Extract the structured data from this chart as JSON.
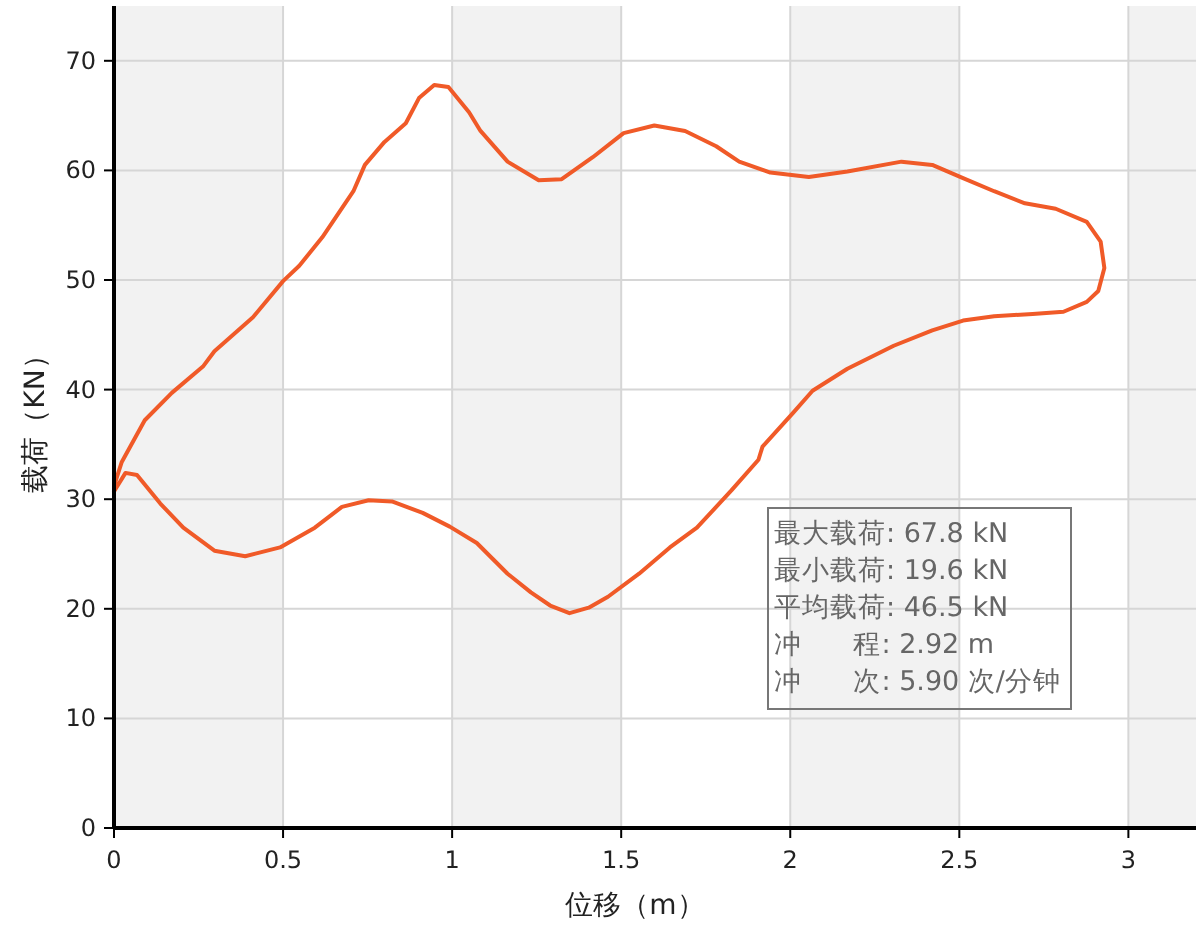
{
  "chart_data": {
    "type": "line",
    "xlabel": "位移（m）",
    "ylabel": "载荷（KN）",
    "xlim": [
      0,
      3.2
    ],
    "ylim": [
      0,
      75
    ],
    "xticks": [
      0,
      0.5,
      1,
      1.5,
      2,
      2.5,
      3
    ],
    "yticks": [
      0,
      10,
      20,
      30,
      40,
      50,
      60,
      70
    ],
    "grid": true,
    "series": [
      {
        "color": "#f05a28",
        "x": [
          0,
          0.023,
          0.091,
          0.171,
          0.263,
          0.297,
          0.411,
          0.5,
          0.548,
          0.616,
          0.708,
          0.742,
          0.8,
          0.863,
          0.902,
          0.947,
          0.989,
          1.05,
          1.084,
          1.164,
          1.256,
          1.324,
          1.416,
          1.507,
          1.598,
          1.689,
          1.781,
          1.849,
          1.941,
          2.055,
          2.169,
          2.329,
          2.42,
          2.511,
          2.603,
          2.694,
          2.785,
          2.877,
          2.918,
          2.929,
          2.911,
          2.877,
          2.808,
          2.717,
          2.603,
          2.511,
          2.42,
          2.306,
          2.169,
          2.066,
          2.009,
          1.918,
          1.906,
          1.826,
          1.724,
          1.644,
          1.553,
          1.461,
          1.404,
          1.347,
          1.29,
          1.233,
          1.164,
          1.073,
          0.993,
          0.913,
          0.822,
          0.753,
          0.674,
          0.594,
          0.491,
          0.388,
          0.297,
          0.205,
          0.137,
          0.068,
          0.034,
          0
        ],
        "values": [
          31.2,
          33.4,
          37.2,
          39.7,
          42.1,
          43.5,
          46.6,
          49.9,
          51.3,
          53.9,
          58.1,
          60.5,
          62.6,
          64.3,
          66.6,
          67.8,
          67.6,
          65.3,
          63.6,
          60.8,
          59.1,
          59.2,
          61.2,
          63.4,
          64.1,
          63.6,
          62.2,
          60.8,
          59.8,
          59.4,
          59.9,
          60.8,
          60.5,
          59.3,
          58.1,
          57.0,
          56.5,
          55.3,
          53.5,
          51.1,
          49.0,
          48.0,
          47.1,
          46.9,
          46.7,
          46.3,
          45.4,
          44.0,
          41.9,
          39.9,
          37.9,
          34.8,
          33.6,
          30.8,
          27.4,
          25.6,
          23.2,
          21.1,
          20.1,
          19.6,
          20.3,
          21.5,
          23.2,
          26.0,
          27.5,
          28.75,
          29.8,
          29.9,
          29.3,
          27.4,
          25.6,
          24.8,
          25.3,
          27.4,
          29.6,
          32.2,
          32.4,
          30.7
        ]
      }
    ],
    "annotations": [
      "最大载荷: 67.8 kN",
      "最小载荷: 19.6 kN",
      "平均载荷: 46.5 kN",
      "冲      程: 2.92 m",
      "冲      次: 5.90 次/分钟"
    ]
  }
}
